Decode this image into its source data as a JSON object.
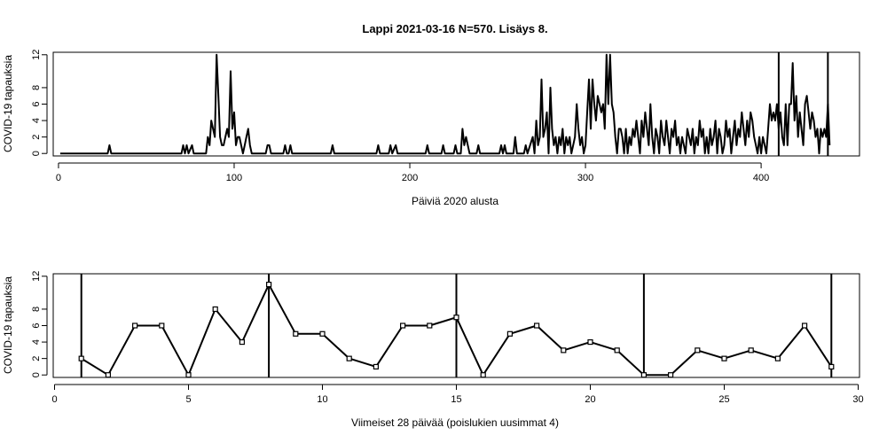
{
  "chart_data": [
    {
      "type": "line",
      "title": "Lappi 2021-03-16 N=570. Lisäys 8.",
      "xlabel": "Päiviä 2020 alusta",
      "ylabel": "COVID-19 tapauksia",
      "xlim": [
        -3,
        456
      ],
      "ylim": [
        -0.3,
        12.3
      ],
      "xticks": [
        0,
        100,
        200,
        300,
        400
      ],
      "yticks": [
        0,
        2,
        4,
        6,
        8,
        12
      ],
      "vlines": [
        410,
        438
      ],
      "series": [
        {
          "points": [
            [
              1,
              0
            ],
            [
              28,
              0
            ],
            [
              29,
              1
            ],
            [
              30,
              0
            ],
            [
              70,
              0
            ],
            [
              71,
              1
            ],
            [
              72,
              0
            ],
            [
              73,
              1
            ],
            [
              74,
              0
            ],
            [
              76,
              1
            ],
            [
              77,
              0
            ],
            [
              84,
              0
            ],
            [
              85,
              2
            ],
            [
              86,
              1
            ],
            [
              87,
              4
            ],
            [
              88,
              3
            ],
            [
              89,
              2
            ],
            [
              90,
              12
            ],
            [
              91,
              7
            ],
            [
              92,
              2
            ],
            [
              93,
              1
            ],
            [
              94,
              1
            ],
            [
              95,
              2
            ],
            [
              96,
              3
            ],
            [
              97,
              2
            ],
            [
              98,
              10
            ],
            [
              99,
              3
            ],
            [
              100,
              5
            ],
            [
              101,
              1
            ],
            [
              102,
              2
            ],
            [
              103,
              2
            ],
            [
              104,
              1
            ],
            [
              105,
              0
            ],
            [
              106,
              1
            ],
            [
              107,
              2
            ],
            [
              108,
              3
            ],
            [
              109,
              1
            ],
            [
              110,
              0
            ],
            [
              118,
              0
            ],
            [
              119,
              1
            ],
            [
              120,
              1
            ],
            [
              121,
              0
            ],
            [
              128,
              0
            ],
            [
              129,
              1
            ],
            [
              130,
              0
            ],
            [
              131,
              0
            ],
            [
              132,
              1
            ],
            [
              133,
              0
            ],
            [
              155,
              0
            ],
            [
              156,
              1
            ],
            [
              157,
              0
            ],
            [
              181,
              0
            ],
            [
              182,
              1
            ],
            [
              183,
              0
            ],
            [
              188,
              0
            ],
            [
              189,
              1
            ],
            [
              190,
              0
            ],
            [
              192,
              1
            ],
            [
              193,
              0
            ],
            [
              209,
              0
            ],
            [
              210,
              1
            ],
            [
              211,
              0
            ],
            [
              218,
              0
            ],
            [
              219,
              1
            ],
            [
              220,
              0
            ],
            [
              225,
              0
            ],
            [
              226,
              1
            ],
            [
              227,
              0
            ],
            [
              229,
              0
            ],
            [
              230,
              3
            ],
            [
              231,
              1
            ],
            [
              232,
              2
            ],
            [
              233,
              1
            ],
            [
              234,
              0
            ],
            [
              238,
              0
            ],
            [
              239,
              1
            ],
            [
              240,
              0
            ],
            [
              251,
              0
            ],
            [
              252,
              1
            ],
            [
              253,
              0
            ],
            [
              254,
              1
            ],
            [
              255,
              0
            ],
            [
              259,
              0
            ],
            [
              260,
              2
            ],
            [
              261,
              0
            ],
            [
              265,
              0
            ],
            [
              266,
              1
            ],
            [
              267,
              0
            ],
            [
              270,
              2
            ],
            [
              271,
              0
            ],
            [
              272,
              4
            ],
            [
              273,
              1
            ],
            [
              274,
              2
            ],
            [
              275,
              9
            ],
            [
              276,
              2
            ],
            [
              277,
              3
            ],
            [
              278,
              5
            ],
            [
              279,
              0
            ],
            [
              280,
              8
            ],
            [
              281,
              3
            ],
            [
              282,
              1
            ],
            [
              283,
              2
            ],
            [
              284,
              0
            ],
            [
              285,
              2
            ],
            [
              286,
              1
            ],
            [
              287,
              3
            ],
            [
              288,
              0
            ],
            [
              289,
              2
            ],
            [
              290,
              1
            ],
            [
              291,
              2
            ],
            [
              292,
              0
            ],
            [
              293,
              1
            ],
            [
              294,
              2
            ],
            [
              295,
              6
            ],
            [
              296,
              3
            ],
            [
              297,
              1
            ],
            [
              298,
              2
            ],
            [
              299,
              0
            ],
            [
              300,
              1
            ],
            [
              301,
              5
            ],
            [
              302,
              9
            ],
            [
              303,
              3
            ],
            [
              304,
              9
            ],
            [
              305,
              6
            ],
            [
              306,
              4
            ],
            [
              307,
              7
            ],
            [
              308,
              6
            ],
            [
              309,
              5
            ],
            [
              310,
              6
            ],
            [
              311,
              3
            ],
            [
              312,
              12
            ],
            [
              313,
              6
            ],
            [
              314,
              12
            ],
            [
              315,
              6
            ],
            [
              316,
              5
            ],
            [
              317,
              2
            ],
            [
              318,
              0
            ],
            [
              319,
              3
            ],
            [
              320,
              3
            ],
            [
              321,
              2
            ],
            [
              322,
              0
            ],
            [
              323,
              3
            ],
            [
              324,
              0
            ],
            [
              325,
              2
            ],
            [
              326,
              1
            ],
            [
              327,
              3
            ],
            [
              328,
              2
            ],
            [
              329,
              4
            ],
            [
              330,
              2
            ],
            [
              331,
              0
            ],
            [
              332,
              4
            ],
            [
              333,
              2
            ],
            [
              334,
              5
            ],
            [
              335,
              3
            ],
            [
              336,
              1
            ],
            [
              337,
              6
            ],
            [
              338,
              2
            ],
            [
              339,
              0
            ],
            [
              340,
              3
            ],
            [
              341,
              2
            ],
            [
              342,
              0
            ],
            [
              343,
              4
            ],
            [
              344,
              2
            ],
            [
              345,
              1
            ],
            [
              346,
              4
            ],
            [
              347,
              2
            ],
            [
              348,
              0
            ],
            [
              349,
              3
            ],
            [
              350,
              2
            ],
            [
              351,
              4
            ],
            [
              352,
              1
            ],
            [
              353,
              2
            ],
            [
              354,
              0
            ],
            [
              355,
              2
            ],
            [
              356,
              1
            ],
            [
              357,
              0
            ],
            [
              358,
              3
            ],
            [
              359,
              2
            ],
            [
              360,
              1
            ],
            [
              361,
              3
            ],
            [
              362,
              0
            ],
            [
              363,
              2
            ],
            [
              364,
              1
            ],
            [
              365,
              4
            ],
            [
              366,
              2
            ],
            [
              367,
              3
            ],
            [
              368,
              0
            ],
            [
              369,
              2
            ],
            [
              370,
              0
            ],
            [
              371,
              3
            ],
            [
              372,
              1
            ],
            [
              373,
              2
            ],
            [
              374,
              4
            ],
            [
              375,
              0
            ],
            [
              376,
              3
            ],
            [
              377,
              2
            ],
            [
              378,
              0
            ],
            [
              379,
              1
            ],
            [
              380,
              4
            ],
            [
              381,
              2
            ],
            [
              382,
              3
            ],
            [
              383,
              0
            ],
            [
              384,
              2
            ],
            [
              385,
              4
            ],
            [
              386,
              1
            ],
            [
              387,
              3
            ],
            [
              388,
              2
            ],
            [
              389,
              5
            ],
            [
              390,
              3
            ],
            [
              391,
              1
            ],
            [
              392,
              4
            ],
            [
              393,
              2
            ],
            [
              394,
              5
            ],
            [
              395,
              4
            ],
            [
              396,
              2
            ],
            [
              397,
              1
            ],
            [
              398,
              0
            ],
            [
              399,
              2
            ],
            [
              400,
              0
            ],
            [
              401,
              2
            ],
            [
              402,
              1
            ],
            [
              403,
              0
            ],
            [
              404,
              3
            ],
            [
              405,
              6
            ],
            [
              406,
              4
            ],
            [
              407,
              5
            ],
            [
              408,
              4
            ],
            [
              409,
              6
            ],
            [
              410,
              3
            ],
            [
              411,
              5
            ],
            [
              412,
              2
            ],
            [
              413,
              1
            ],
            [
              414,
              6
            ],
            [
              415,
              1
            ],
            [
              416,
              6
            ],
            [
              417,
              6
            ],
            [
              418,
              11
            ],
            [
              419,
              4
            ],
            [
              420,
              7
            ],
            [
              421,
              2
            ],
            [
              422,
              5
            ],
            [
              423,
              3
            ],
            [
              424,
              1
            ],
            [
              425,
              6
            ],
            [
              426,
              7
            ],
            [
              427,
              5
            ],
            [
              428,
              3
            ],
            [
              429,
              5
            ],
            [
              430,
              4
            ],
            [
              431,
              2
            ],
            [
              432,
              3
            ],
            [
              433,
              0
            ],
            [
              434,
              3
            ],
            [
              435,
              2
            ],
            [
              436,
              3
            ],
            [
              437,
              2
            ],
            [
              438,
              6
            ],
            [
              439,
              1
            ]
          ]
        }
      ]
    },
    {
      "type": "line",
      "xlabel": "Viimeiset 28 päivää (poislukien uusimmat 4)",
      "ylabel": "COVID-19 tapauksia",
      "xlim": [
        -0.05,
        30.05
      ],
      "ylim": [
        -0.3,
        12.3
      ],
      "xticks": [
        0,
        5,
        10,
        15,
        20,
        25,
        30
      ],
      "yticks": [
        0,
        2,
        4,
        6,
        8,
        12
      ],
      "vlines": [
        1,
        8,
        15,
        22,
        29
      ],
      "series": [
        {
          "x": [
            1,
            2,
            3,
            4,
            5,
            6,
            7,
            8,
            9,
            10,
            11,
            12,
            13,
            14,
            15,
            16,
            17,
            18,
            19,
            20,
            21,
            22,
            23,
            24,
            25,
            26,
            27,
            28,
            29
          ],
          "values": [
            2,
            0,
            6,
            6,
            0,
            8,
            4,
            11,
            5,
            5,
            2,
            1,
            6,
            6,
            7,
            0,
            5,
            6,
            3,
            4,
            3,
            0,
            0,
            3,
            2,
            3,
            2,
            6,
            1
          ]
        }
      ]
    }
  ]
}
